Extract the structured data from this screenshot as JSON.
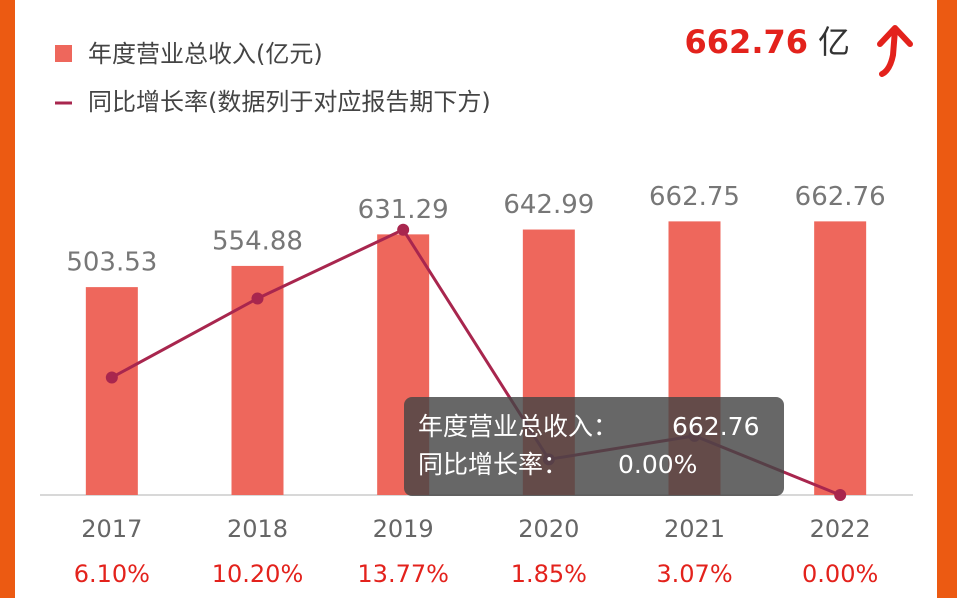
{
  "chart_data": {
    "type": "bar-line",
    "header": {
      "value": "662.76",
      "unit": "亿"
    },
    "categories": [
      "2017",
      "2018",
      "2019",
      "2020",
      "2021",
      "2022"
    ],
    "series": [
      {
        "name": "年度营业总收入(亿元)",
        "color": "#ee675c",
        "type": "bar",
        "values": [
          503.53,
          554.88,
          631.29,
          642.99,
          662.75,
          662.76
        ]
      },
      {
        "name": "同比增长率(数据列于对应报告期下方)",
        "color": "#a8264e",
        "type": "line",
        "axis": "y2",
        "values": [
          6.1,
          10.2,
          13.77,
          1.85,
          3.07,
          0.0
        ],
        "value_labels": [
          "6.10%",
          "10.20%",
          "13.77%",
          "1.85%",
          "3.07%",
          "0.00%"
        ],
        "label_color": "#e3221c"
      }
    ],
    "ylim": [
      0,
      700
    ],
    "y2lim": [
      0,
      15
    ],
    "tooltip": {
      "label1": "年度营业总收入：",
      "value1": "662.76",
      "label2": "同比增长率：",
      "value2": "0.00%"
    }
  }
}
